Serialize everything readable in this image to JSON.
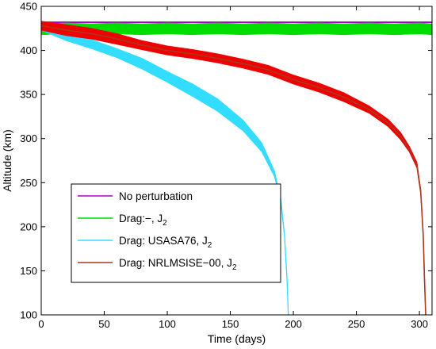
{
  "chart_data": {
    "type": "line",
    "xlabel": "Time (days)",
    "ylabel": "Altitude (km)",
    "xlim": [
      0,
      310
    ],
    "ylim": [
      100,
      450
    ],
    "xticks": [
      0,
      50,
      100,
      150,
      200,
      250,
      300
    ],
    "yticks": [
      100,
      150,
      200,
      250,
      300,
      350,
      400,
      450
    ],
    "grid": false,
    "legend_position": "lower-left",
    "series": [
      {
        "name": "No perturbation",
        "name_sub": "",
        "color": "#aa00cc",
        "x": [
          0,
          310
        ],
        "y": [
          432,
          432
        ],
        "band_halfwidth": [
          0.4,
          0.4
        ]
      },
      {
        "name": "Drag:−, J",
        "name_sub": "2",
        "color": "#00dd00",
        "x": [
          0,
          20,
          40,
          60,
          80,
          100,
          120,
          140,
          160,
          180,
          200,
          220,
          240,
          260,
          280,
          300,
          310
        ],
        "y": [
          424,
          425,
          424,
          425,
          424,
          425,
          424,
          425,
          424,
          425,
          424,
          425,
          424,
          425,
          424,
          425,
          424
        ],
        "band_halfwidth": [
          6,
          6,
          6,
          6,
          6,
          6,
          6,
          6,
          6,
          6,
          6,
          6,
          6,
          6,
          6,
          6,
          6
        ]
      },
      {
        "name": "Drag: USASA76, J",
        "name_sub": "2",
        "color": "#33ddff",
        "x": [
          0,
          20,
          40,
          60,
          80,
          100,
          120,
          140,
          160,
          175,
          185,
          190,
          193,
          195,
          196
        ],
        "y": [
          427,
          415,
          407,
          397,
          385,
          370,
          355,
          338,
          315,
          290,
          260,
          230,
          190,
          140,
          100
        ],
        "band_halfwidth": [
          4,
          4,
          5,
          5,
          6,
          6,
          7,
          7,
          6,
          5,
          3,
          2,
          1,
          1,
          0.5
        ]
      },
      {
        "name": "Drag: NRLMSISE−00, J",
        "name_sub": "2",
        "color": "#ee0000",
        "x": [
          0,
          20,
          40,
          60,
          80,
          100,
          120,
          140,
          160,
          180,
          200,
          220,
          240,
          260,
          275,
          285,
          292,
          298,
          301,
          303,
          304,
          305
        ],
        "y": [
          428,
          423,
          419,
          413,
          406,
          400,
          396,
          391,
          385,
          378,
          367,
          358,
          347,
          333,
          318,
          303,
          288,
          270,
          240,
          190,
          140,
          100
        ],
        "band_halfwidth": [
          5,
          6,
          6,
          6,
          5,
          5,
          5,
          5,
          5,
          5,
          5,
          5,
          5,
          4,
          4,
          4,
          3,
          3,
          2,
          1,
          1,
          0.5
        ]
      }
    ]
  }
}
